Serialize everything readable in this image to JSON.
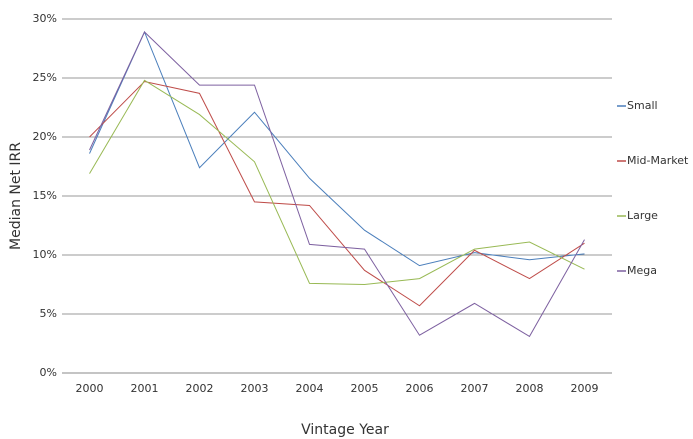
{
  "chart_data": {
    "type": "line",
    "x_label": "Vintage Year",
    "y_label": "Median Net IRR",
    "categories": [
      "2000",
      "2001",
      "2002",
      "2003",
      "2004",
      "2005",
      "2006",
      "2007",
      "2008",
      "2009"
    ],
    "series": [
      {
        "name": "Small",
        "color": "#4a7ebb",
        "values": [
          18.6,
          28.9,
          17.4,
          22.1,
          16.5,
          12.1,
          9.1,
          10.2,
          9.6,
          10.1
        ]
      },
      {
        "name": "Mid-Market",
        "color": "#be4b48",
        "values": [
          20.0,
          24.7,
          23.7,
          14.5,
          14.2,
          8.7,
          5.7,
          10.4,
          8.0,
          11.0
        ]
      },
      {
        "name": "Large",
        "color": "#98b954",
        "values": [
          16.9,
          24.8,
          21.9,
          17.9,
          7.6,
          7.5,
          8.0,
          10.5,
          11.1,
          8.8
        ]
      },
      {
        "name": "Mega",
        "color": "#7d60a0",
        "values": [
          18.9,
          28.9,
          24.4,
          24.4,
          10.9,
          10.5,
          3.2,
          5.9,
          3.1,
          11.3
        ]
      }
    ],
    "ylim": [
      0,
      30
    ],
    "yticks": [
      {
        "value": 0,
        "label": "0%"
      },
      {
        "value": 5,
        "label": "5%"
      },
      {
        "value": 10,
        "label": "10%"
      },
      {
        "value": 15,
        "label": "15%"
      },
      {
        "value": 20,
        "label": "20%"
      },
      {
        "value": 25,
        "label": "25%"
      },
      {
        "value": 30,
        "label": "30%"
      }
    ],
    "grid": true,
    "legend": "right"
  }
}
